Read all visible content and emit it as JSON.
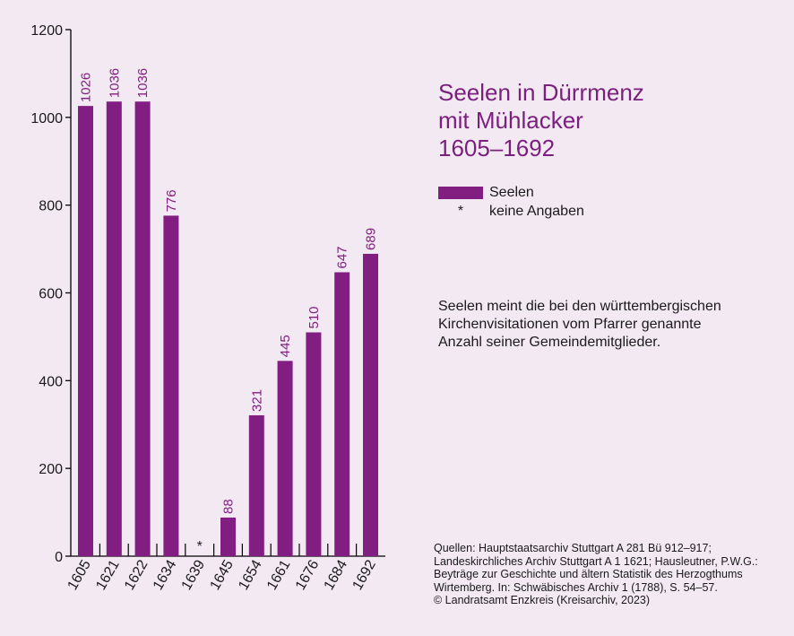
{
  "colors": {
    "bar": "#821d82",
    "title": "#7b1f7e",
    "background": "#f3e9f3",
    "axis": "#000000"
  },
  "title_lines": [
    "Seelen in Dürrmenz",
    "mit Mühlacker",
    "1605–1692"
  ],
  "legend": {
    "bar_label": "Seelen",
    "star_symbol": "*",
    "star_label": "keine Angaben"
  },
  "note_lines": [
    "Seelen meint die bei den württembergischen",
    "Kirchenvisitationen vom Pfarrer genannte",
    "Anzahl seiner Gemeindemitglieder."
  ],
  "source_lines": [
    "Quellen: Hauptstaatsarchiv Stuttgart A 281 Bü 912–917;",
    "Landeskirchliches Archiv Stuttgart A 1 1621; Hausleutner, P.W.G.:",
    "Beyträge zur Geschichte und ältern Statistik des Herzogthums",
    "Wirtemberg. In: Schwäbisches Archiv 1 (1788), S. 54–57.",
    "© Landratsamt Enzkreis (Kreisarchiv, 2023)"
  ],
  "chart_data": {
    "type": "bar",
    "categories": [
      "1605",
      "1621",
      "1622",
      "1634",
      "1639",
      "1645",
      "1654",
      "1661",
      "1676",
      "1684",
      "1692"
    ],
    "values": [
      1026,
      1036,
      1036,
      776,
      null,
      88,
      321,
      445,
      510,
      647,
      689
    ],
    "data_labels": [
      "1026",
      "1036",
      "1036",
      "776",
      "*",
      "88",
      "321",
      "445",
      "510",
      "647",
      "689"
    ],
    "ylim": [
      0,
      1200
    ],
    "yticks": [
      0,
      200,
      400,
      600,
      800,
      1000,
      1200
    ],
    "grid": false,
    "legend_position": "right"
  }
}
